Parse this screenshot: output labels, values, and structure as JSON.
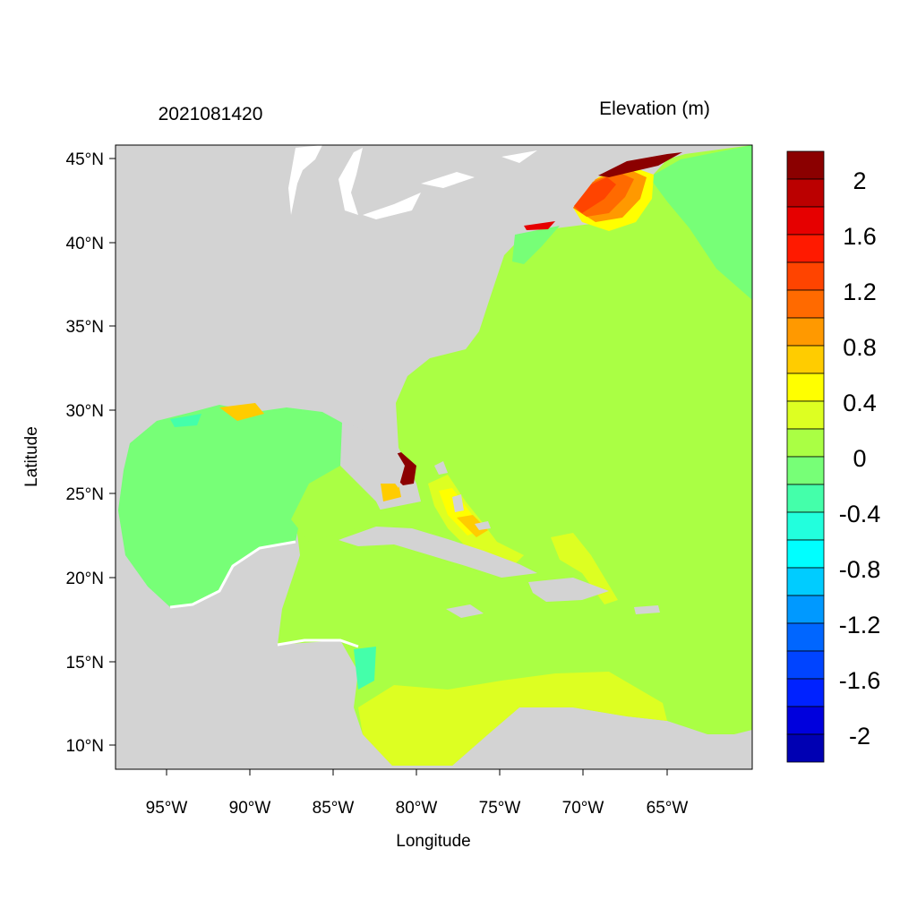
{
  "header": {
    "date_label": "2021081420",
    "variable_label": "Elevation (m)"
  },
  "axes": {
    "xlabel": "Longitude",
    "ylabel": "Latitude",
    "lat_ticks": [
      "45°N",
      "40°N",
      "35°N",
      "30°N",
      "25°N",
      "20°N",
      "15°N",
      "10°N"
    ],
    "lon_ticks": [
      "95°W",
      "90°W",
      "85°W",
      "80°W",
      "75°W",
      "70°W",
      "65°W"
    ]
  },
  "colorbar": {
    "labels": [
      "2",
      "1.6",
      "1.2",
      "0.8",
      "0.4",
      "0",
      "-0.4",
      "-0.8",
      "-1.2",
      "-1.6",
      "-2"
    ],
    "colors": [
      "#8b0000",
      "#bb0000",
      "#e60000",
      "#ff1a00",
      "#ff4400",
      "#ff6a00",
      "#ff9900",
      "#ffcc00",
      "#ffff00",
      "#ddff22",
      "#aaff44",
      "#77ff77",
      "#44ffaa",
      "#22ffdd",
      "#00ffff",
      "#00ccff",
      "#0099ff",
      "#0066ff",
      "#0044ff",
      "#0022ff",
      "#0000dd",
      "#0000b3"
    ]
  },
  "map": {
    "land_color": "#d3d3d3",
    "ocean_default_color": "#aaff44"
  }
}
